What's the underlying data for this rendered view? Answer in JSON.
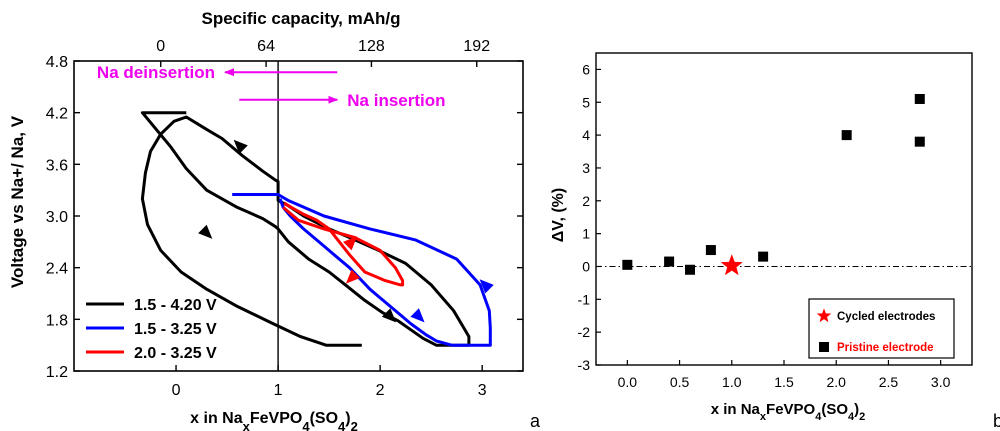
{
  "chart_data": [
    {
      "type": "line",
      "panel_letter": "a",
      "top_axis_label": "Specific capacity, mAh/g",
      "top_ticks": [
        "0",
        "64",
        "128",
        "192"
      ],
      "top_tick_values": [
        0,
        64,
        128,
        192
      ],
      "xlabel_parts": [
        "x in Na",
        "x",
        "FeVPO",
        "4",
        "(SO",
        "4",
        ")",
        "2"
      ],
      "ylabel": "Voltage vs Na+/ Na, V",
      "xlim": [
        -1.0,
        3.4
      ],
      "ylim": [
        1.2,
        4.8
      ],
      "x_ticks": [
        "0",
        "1",
        "2",
        "3"
      ],
      "x_tick_values": [
        0,
        1,
        2,
        3
      ],
      "y_ticks": [
        "1.2",
        "1.8",
        "2.4",
        "3.0",
        "3.6",
        "4.2",
        "4.8"
      ],
      "y_tick_values": [
        1.2,
        1.8,
        2.4,
        3.0,
        3.6,
        4.2,
        4.8
      ],
      "vertical_line_x": 1.0,
      "annotations": [
        {
          "text": "Na deinsertion",
          "color": "#ee00ee",
          "arrow": "left",
          "x_start": 1.58,
          "x_end": 0.48,
          "y": 4.67
        },
        {
          "text": "Na insertion",
          "color": "#ee00ee",
          "arrow": "right",
          "x_start": 0.62,
          "x_end": 1.58,
          "y": 4.35
        }
      ],
      "series": [
        {
          "name": "1.5 - 4.20 V",
          "color": "#000000",
          "x": [
            1.82,
            1.47,
            1.22,
            0.95,
            0.6,
            0.3,
            0.05,
            -0.15,
            -0.28,
            -0.33,
            -0.3,
            -0.25,
            -0.15,
            -0.02,
            0.1,
            0.28,
            0.45,
            0.65,
            0.85,
            0.97,
            1.0,
            1.0,
            1.1,
            1.25,
            1.5,
            1.7,
            1.95,
            2.25,
            2.5,
            2.72,
            2.82,
            2.87,
            2.87,
            2.87,
            2.8,
            2.68,
            2.55,
            2.42,
            2.3,
            2.18,
            2.02,
            1.85,
            1.68,
            1.5,
            1.3,
            1.1,
            1.0,
            0.97,
            0.85,
            0.6,
            0.3,
            0.1,
            -0.05,
            -0.33,
            -0.33,
            0.1
          ],
          "y": [
            1.5,
            1.5,
            1.6,
            1.75,
            1.95,
            2.15,
            2.35,
            2.6,
            2.9,
            3.2,
            3.5,
            3.75,
            3.95,
            4.1,
            4.15,
            4.02,
            3.9,
            3.7,
            3.52,
            3.42,
            3.4,
            3.18,
            3.12,
            3.0,
            2.85,
            2.75,
            2.62,
            2.45,
            2.2,
            1.9,
            1.7,
            1.6,
            1.5,
            1.5,
            1.5,
            1.5,
            1.5,
            1.58,
            1.68,
            1.78,
            1.88,
            2.02,
            2.18,
            2.35,
            2.5,
            2.7,
            2.85,
            2.88,
            2.97,
            3.1,
            3.3,
            3.55,
            3.8,
            4.2,
            4.2,
            4.2
          ],
          "arrows": [
            {
              "x": 0.62,
              "y": 3.82,
              "dir": "up-left"
            },
            {
              "x": 0.3,
              "y": 2.8,
              "dir": "down-right"
            },
            {
              "x": 2.1,
              "y": 1.83,
              "dir": "down-right"
            }
          ]
        },
        {
          "name": "1.5 - 3.25 V",
          "color": "#0000ff",
          "x": [
            0.55,
            1.0,
            1.1,
            1.45,
            1.9,
            2.35,
            2.75,
            2.98,
            3.07,
            3.08,
            3.08,
            2.95,
            2.7,
            2.55,
            2.45,
            2.3,
            2.1,
            1.9,
            1.7,
            1.55,
            1.45,
            1.35,
            1.25,
            1.12,
            1.05,
            1.02
          ],
          "y": [
            3.25,
            3.25,
            3.18,
            3.0,
            2.85,
            2.72,
            2.5,
            2.2,
            1.9,
            1.7,
            1.5,
            1.5,
            1.5,
            1.55,
            1.62,
            1.75,
            1.95,
            2.15,
            2.4,
            2.55,
            2.65,
            2.75,
            2.85,
            3.0,
            3.1,
            3.2
          ],
          "arrows": [
            {
              "x": 3.03,
              "y": 2.2,
              "dir": "up-left"
            },
            {
              "x": 2.38,
              "y": 1.83,
              "dir": "down-right"
            }
          ]
        },
        {
          "name": "2.0 - 3.25 V",
          "color": "#ff0000",
          "x": [
            1.05,
            1.2,
            1.45,
            1.75,
            2.0,
            2.15,
            2.22,
            2.22,
            2.2,
            2.05,
            1.85,
            1.7,
            1.6,
            1.5,
            1.38,
            1.25,
            1.13,
            1.06
          ],
          "y": [
            3.1,
            2.95,
            2.85,
            2.75,
            2.6,
            2.4,
            2.25,
            2.2,
            2.2,
            2.25,
            2.35,
            2.55,
            2.7,
            2.85,
            2.95,
            3.02,
            3.1,
            3.15
          ],
          "arrows": [
            {
              "x": 1.72,
              "y": 2.7,
              "dir": "up-right"
            },
            {
              "x": 1.72,
              "y": 2.28,
              "dir": "down-left"
            }
          ]
        }
      ],
      "legend_position": "bottom-left"
    },
    {
      "type": "scatter",
      "panel_letter": "b",
      "xlabel_parts": [
        "x in Na",
        "x",
        "FeVPO",
        "4",
        "(SO",
        "4",
        ")",
        "2"
      ],
      "ylabel": "ΔV, (%)",
      "xlim": [
        -0.3,
        3.3
      ],
      "ylim": [
        -3,
        6.5
      ],
      "x_ticks": [
        "0.0",
        "0.5",
        "1.0",
        "1.5",
        "2.0",
        "2.5",
        "3.0"
      ],
      "x_tick_values": [
        0.0,
        0.5,
        1.0,
        1.5,
        2.0,
        2.5,
        3.0
      ],
      "y_ticks": [
        "-3",
        "-2",
        "-1",
        "0",
        "1",
        "2",
        "3",
        "4",
        "5",
        "6"
      ],
      "y_tick_values": [
        -3,
        -2,
        -1,
        0,
        1,
        2,
        3,
        4,
        5,
        6
      ],
      "reference_line_y": 0,
      "series": [
        {
          "name": "Cycled electrodes",
          "color": "#ff0000",
          "marker": "star",
          "points": [
            {
              "x": 1.0,
              "y": 0.02
            }
          ]
        },
        {
          "name": "Pristine electrode",
          "color": "#000000",
          "marker": "square",
          "points": [
            {
              "x": 0.0,
              "y": 0.05
            },
            {
              "x": 0.4,
              "y": 0.15
            },
            {
              "x": 0.6,
              "y": -0.1
            },
            {
              "x": 0.8,
              "y": 0.5
            },
            {
              "x": 1.3,
              "y": 0.3
            },
            {
              "x": 2.1,
              "y": 4.0
            },
            {
              "x": 2.8,
              "y": 5.1
            },
            {
              "x": 2.8,
              "y": 3.8
            }
          ]
        }
      ],
      "legend_position": "bottom-right",
      "legend_label_colors": [
        "#000000",
        "#ff0000"
      ]
    }
  ]
}
